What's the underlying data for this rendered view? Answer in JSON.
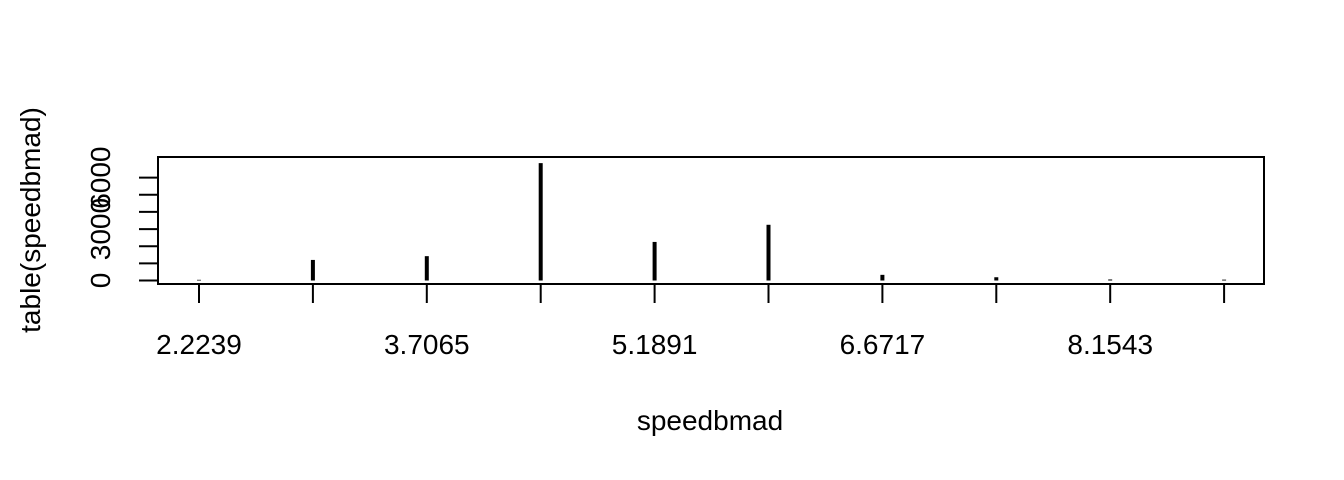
{
  "chart_data": {
    "type": "bar",
    "title": "",
    "xlabel": "speedbmad",
    "ylabel": "table(speedbmad)",
    "categories": [
      "2.2239",
      "2.9652",
      "3.7065",
      "4.4478",
      "5.1891",
      "5.9304",
      "6.6717",
      "7.413",
      "8.1543",
      "8.8956"
    ],
    "shown_tick_labels": [
      "2.2239",
      "3.7065",
      "5.1891",
      "6.6717",
      "8.1543"
    ],
    "values": [
      40,
      1200,
      1420,
      6850,
      2250,
      3250,
      330,
      190,
      60,
      50
    ],
    "yticks": [
      0,
      1000,
      2000,
      3000,
      4000,
      5000,
      6000
    ],
    "ytick_labels": [
      "0",
      "3000",
      "6000"
    ],
    "ylim": [
      -200,
      7100
    ],
    "grid": false,
    "legend": "none",
    "colors": {
      "bars": "#000000",
      "axes": "#000000",
      "background": "#ffffff"
    }
  }
}
